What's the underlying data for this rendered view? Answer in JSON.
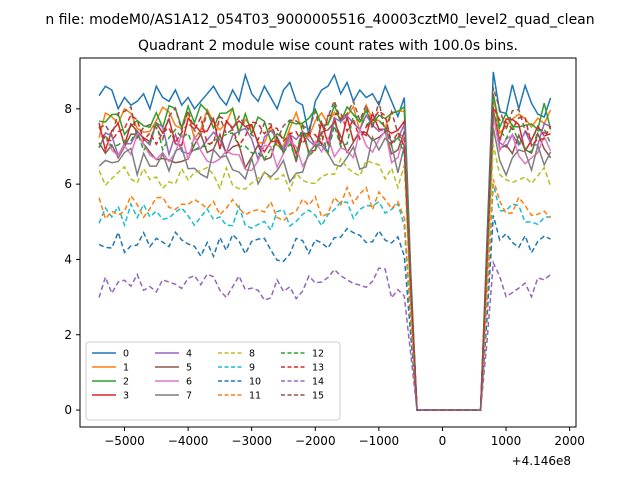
{
  "chart_data": {
    "type": "line",
    "title_top": "n file: modeM0/AS1A12_054T03_9000005516_40003cztM0_level2_quad_clean",
    "title": "Quadrant 2 module wise count rates with 100.0s bins.",
    "xlabel": "",
    "ylabel": "",
    "x_offset_label": "+4.146e8",
    "xlim": [
      -5700,
      2100
    ],
    "ylim": [
      -0.45,
      9.35
    ],
    "x_ticks": [
      -5000,
      -4000,
      -3000,
      -2000,
      -1000,
      0,
      1000,
      2000
    ],
    "x_tick_labels": [
      "−5000",
      "−4000",
      "−3000",
      "−2000",
      "−1000",
      "0",
      "1000",
      "2000"
    ],
    "y_ticks": [
      0,
      2,
      4,
      6,
      8
    ],
    "y_tick_labels": [
      "0",
      "2",
      "4",
      "6",
      "8"
    ],
    "grid": false,
    "legend_position": "lower-left",
    "legend_columns": 4,
    "x_start": -5400,
    "x_step": 100,
    "x_count": 72,
    "gap_range": [
      -400,
      600
    ],
    "series": [
      {
        "name": "0",
        "color": "#1f77b4",
        "dash": "solid",
        "level": 8.2,
        "base": [
          8.35,
          8.6,
          8.5,
          8.0,
          8.3,
          8.1,
          8.2,
          8.4,
          8.0,
          8.6,
          8.3,
          8.2,
          8.5,
          8.1,
          8.3,
          8.0,
          8.2,
          8.4,
          8.6,
          8.3,
          8.1,
          8.5,
          8.2,
          8.9,
          8.4,
          8.2,
          8.6,
          8.3,
          8.0,
          8.5,
          8.7,
          8.2,
          8.1,
          7.3,
          8.2,
          8.5,
          8.6,
          8.9,
          8.4,
          8.7,
          8.2,
          8.5,
          8.3,
          8.4,
          8.1,
          8.6,
          8.2,
          7.8,
          8.3
        ],
        "tail": [
          8.9,
          7.6,
          7.2,
          7.8,
          7.4,
          7.6,
          7.3,
          7.8,
          7.5,
          8.0,
          3.0
        ]
      },
      {
        "name": "1",
        "color": "#ff7f0e",
        "dash": "solid",
        "level": 7.6
      },
      {
        "name": "2",
        "color": "#2ca02c",
        "dash": "solid",
        "level": 7.7
      },
      {
        "name": "3",
        "color": "#d62728",
        "dash": "solid",
        "level": 7.3
      },
      {
        "name": "4",
        "color": "#9467bd",
        "dash": "solid",
        "level": 7.2
      },
      {
        "name": "5",
        "color": "#8c564b",
        "dash": "solid",
        "level": 7.0
      },
      {
        "name": "6",
        "color": "#e377c2",
        "dash": "solid",
        "level": 6.9
      },
      {
        "name": "7",
        "color": "#7f7f7f",
        "dash": "solid",
        "level": 6.6
      },
      {
        "name": "8",
        "color": "#bcbd22",
        "dash": "dashed",
        "level": 6.2
      },
      {
        "name": "9",
        "color": "#17becf",
        "dash": "dashed",
        "level": 5.2
      },
      {
        "name": "10",
        "color": "#1f77b4",
        "dash": "dashed",
        "level": 4.4
      },
      {
        "name": "11",
        "color": "#ff7f0e",
        "dash": "dashed",
        "level": 5.4
      },
      {
        "name": "12",
        "color": "#2ca02c",
        "dash": "dashed",
        "level": 7.2
      },
      {
        "name": "13",
        "color": "#d62728",
        "dash": "dashed",
        "level": 7.4
      },
      {
        "name": "14",
        "color": "#9467bd",
        "dash": "dashed",
        "level": 3.3
      },
      {
        "name": "15",
        "color": "#8c564b",
        "dash": "dashed",
        "level": 7.6
      }
    ]
  }
}
